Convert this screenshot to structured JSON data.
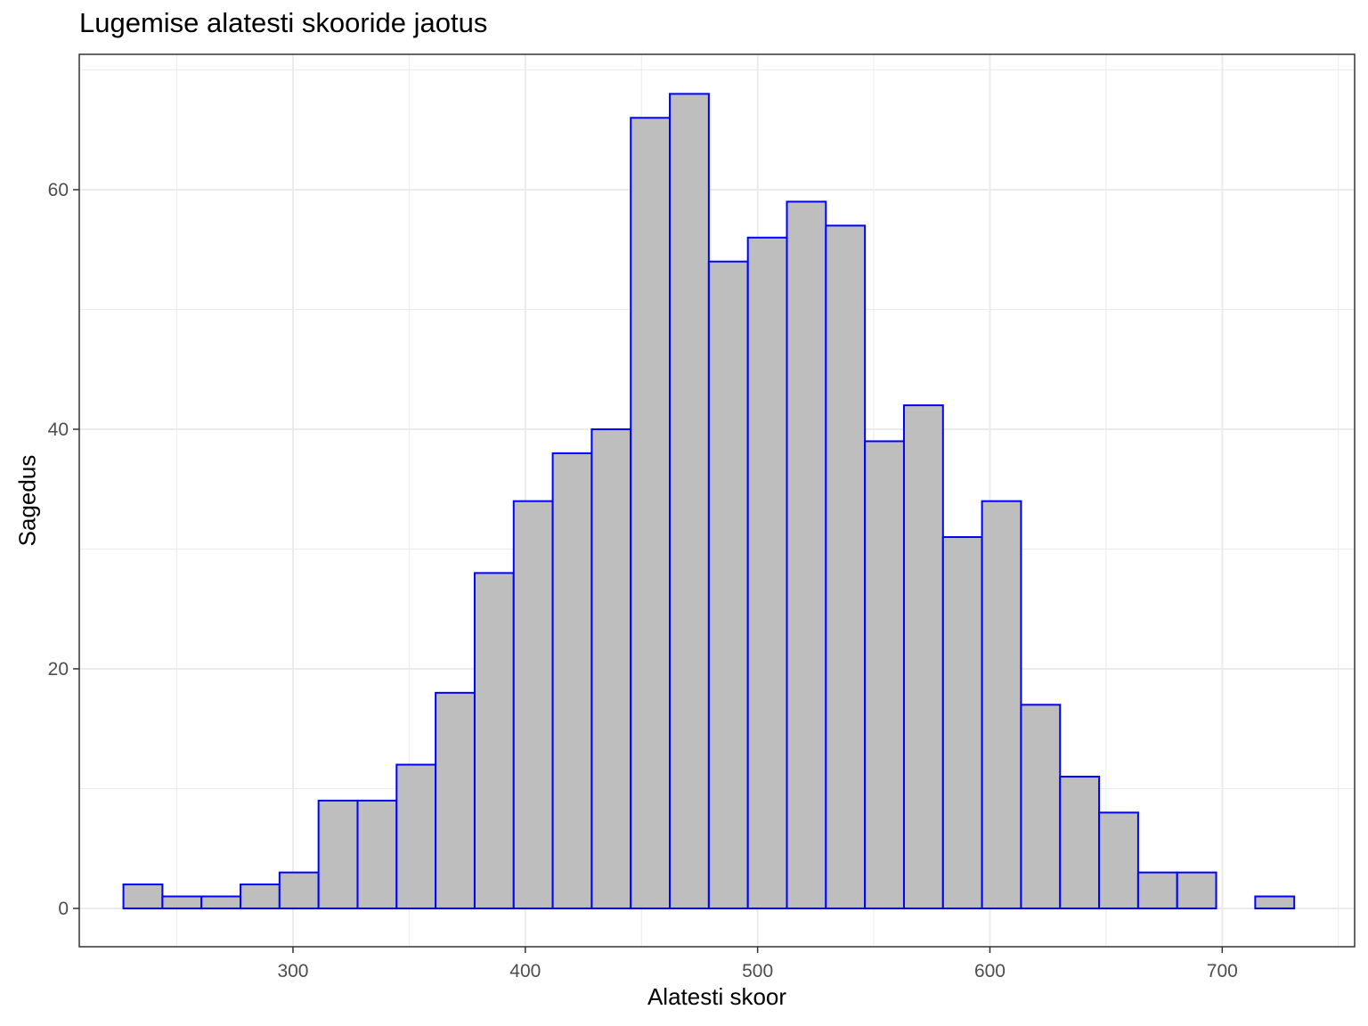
{
  "chart_data": {
    "type": "bar",
    "title": "Lugemise alatesti skooride jaotus",
    "xlabel": "Alatesti skoor",
    "ylabel": "Sagedus",
    "bins": {
      "start": 227,
      "width": 16.8,
      "counts": [
        2,
        1,
        1,
        2,
        3,
        9,
        9,
        12,
        18,
        28,
        34,
        38,
        40,
        66,
        68,
        54,
        56,
        59,
        57,
        39,
        42,
        31,
        34,
        17,
        11,
        8,
        3,
        3,
        0,
        1
      ]
    },
    "xlim": [
      208,
      757
    ],
    "ylim": [
      -3.2,
      71.3
    ],
    "x_ticks": [
      300,
      400,
      500,
      600,
      700
    ],
    "y_ticks": [
      0,
      20,
      40,
      60
    ],
    "grid": true,
    "colors": {
      "fill": "#bebebe",
      "outline": "#0000ff",
      "grid": "#ebebeb",
      "panel_border": "#333333"
    }
  }
}
